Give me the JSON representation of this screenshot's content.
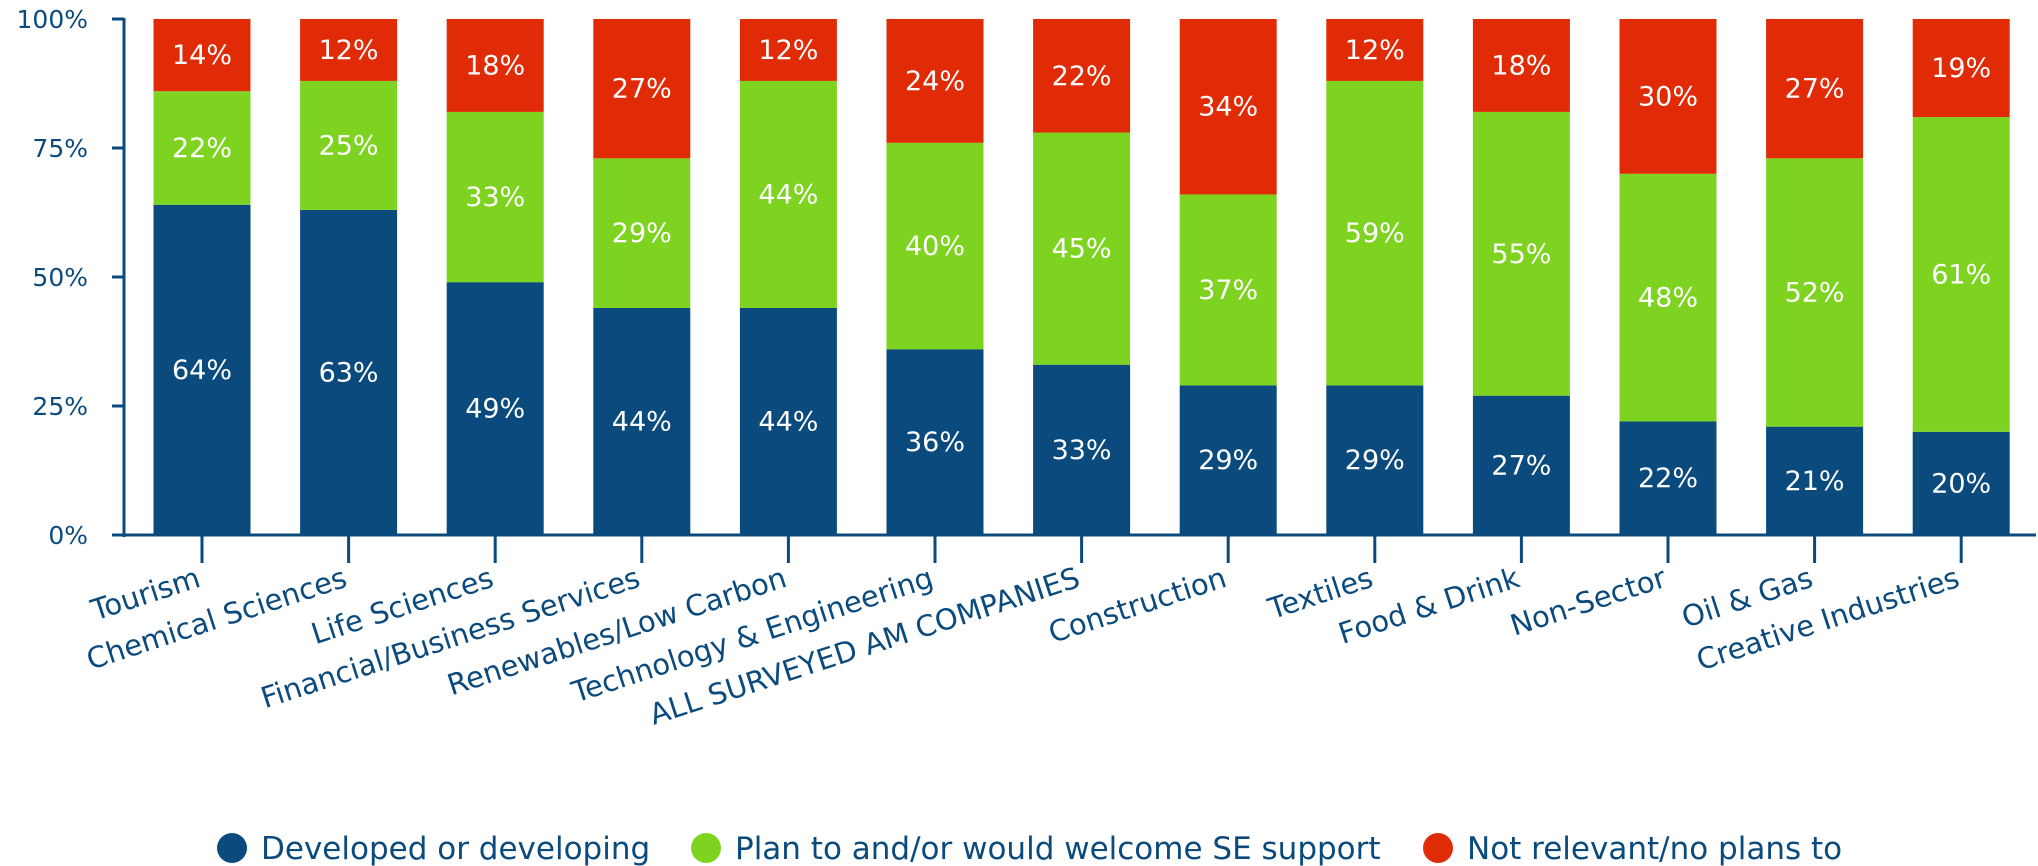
{
  "chart_data": {
    "type": "bar",
    "stacked": true,
    "categories": [
      "Tourism",
      "Chemical Sciences",
      "Life Sciences",
      "Financial/Business Services",
      "Renewables/Low Carbon",
      "Technology & Engineering",
      "ALL SURVEYED AM COMPANIES",
      "Construction",
      "Textiles",
      "Food & Drink",
      "Non-Sector",
      "Oil & Gas",
      "Creative Industries"
    ],
    "series": [
      {
        "name": "Developed or developing",
        "color": "#0b4a7d",
        "values": [
          64,
          63,
          49,
          44,
          44,
          36,
          33,
          29,
          29,
          27,
          22,
          21,
          20
        ]
      },
      {
        "name": "Plan to and/or would welcome SE support",
        "color": "#7ed321",
        "values": [
          22,
          25,
          33,
          29,
          44,
          40,
          45,
          37,
          59,
          55,
          48,
          52,
          61
        ]
      },
      {
        "name": "Not relevant/no plans to",
        "color": "#e12a06",
        "values": [
          14,
          12,
          18,
          27,
          12,
          24,
          22,
          34,
          12,
          18,
          30,
          27,
          19
        ]
      }
    ],
    "y_ticks": [
      "0%",
      "25%",
      "50%",
      "75%",
      "100%"
    ],
    "ylim": [
      0,
      100
    ],
    "legend_position": "bottom",
    "axis_color": "#0b4a7d"
  }
}
